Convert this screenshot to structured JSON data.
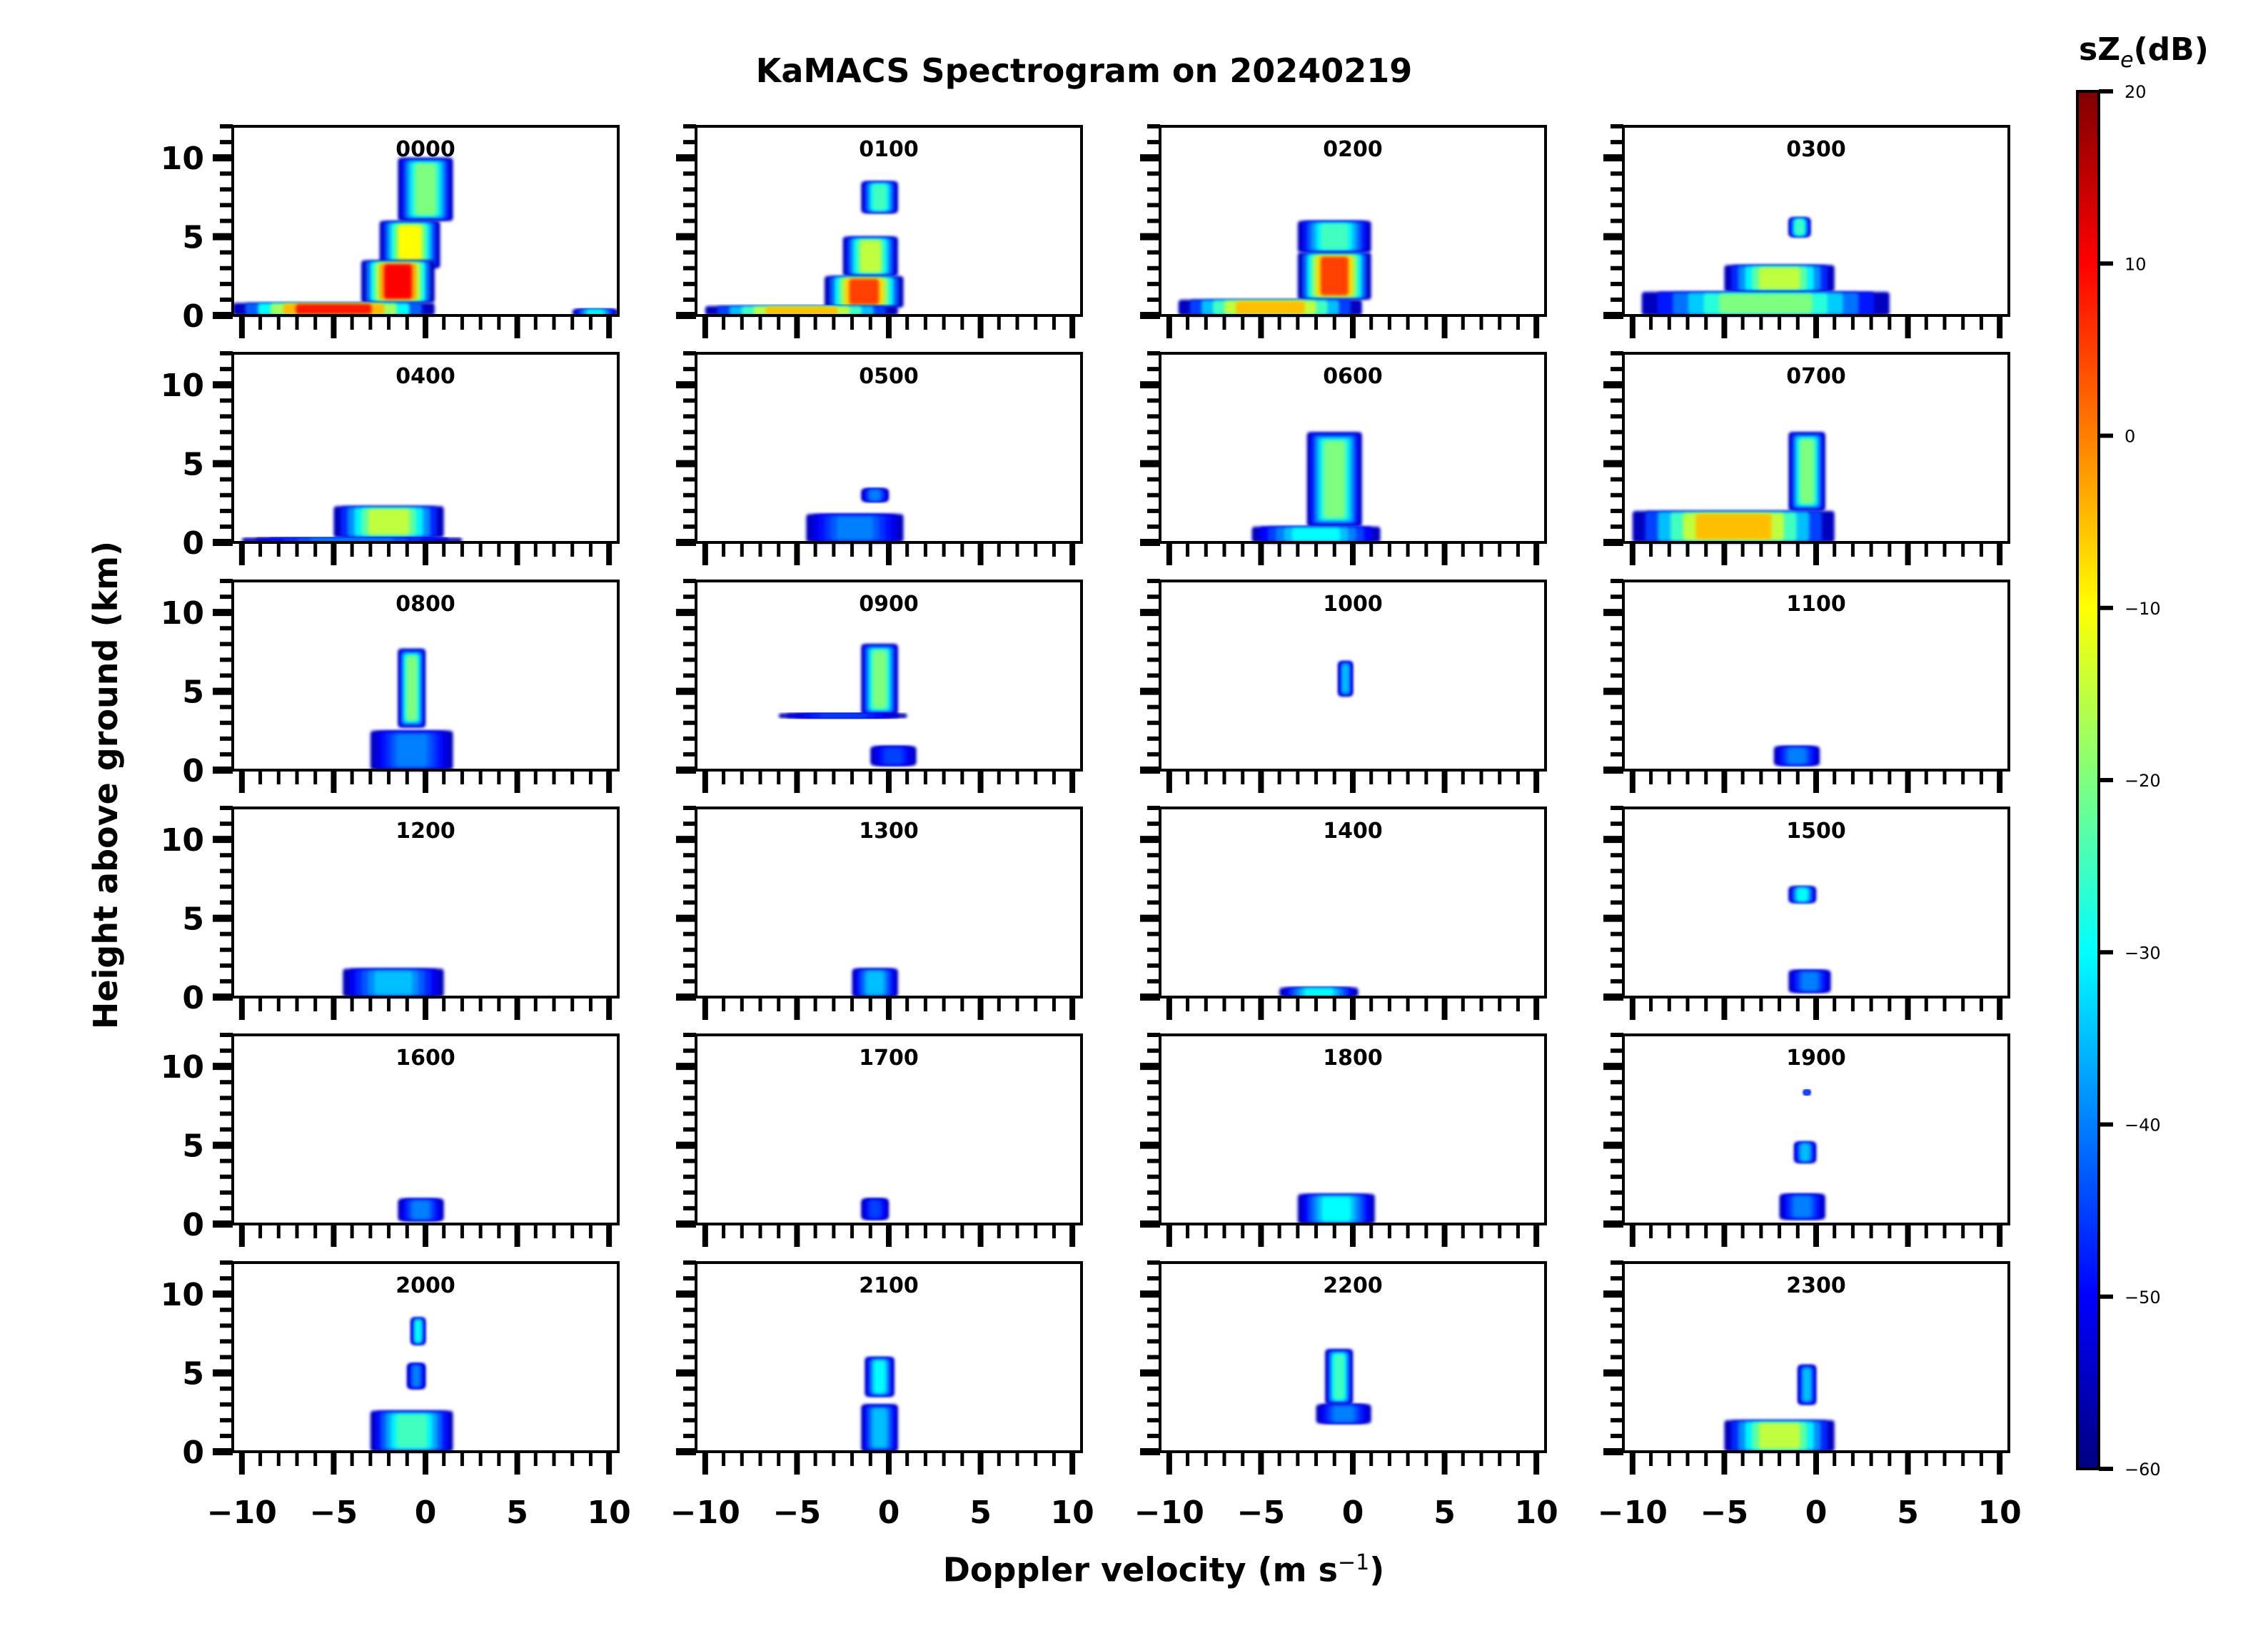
{
  "chart_data": {
    "type": "heatmap",
    "title": "KaMACS Spectrogram on 20240219",
    "xlabel": "Doppler velocity (m s",
    "xlabel_sup": "−1",
    "xlabel_close": ")",
    "ylabel": "Height above ground (km)",
    "xlim": [
      -10.5,
      10.5
    ],
    "ylim": [
      0,
      12
    ],
    "xticks": [
      -10,
      -5,
      0,
      5,
      10
    ],
    "xtick_labels": [
      "−10",
      "−5",
      "0",
      "5",
      "10"
    ],
    "yticks": [
      0,
      5,
      10
    ],
    "ytick_labels": [
      "0",
      "5",
      "10"
    ],
    "grid": false,
    "layout": {
      "rows": 6,
      "cols": 4
    },
    "colorbar": {
      "title": "sZ",
      "title_sub": "e",
      "title_unit": "(dB)",
      "range": [
        -60,
        20
      ],
      "ticks": [
        20,
        10,
        0,
        -10,
        -20,
        -30,
        -40,
        -50,
        -60
      ],
      "tick_labels": [
        "20",
        "10",
        "0",
        "−10",
        "−20",
        "−30",
        "−40",
        "−50",
        "−60"
      ],
      "colormap": "jet",
      "colors": [
        "#00007f",
        "#0000ff",
        "#007fff",
        "#00ffff",
        "#7fff7f",
        "#ffff00",
        "#ff7f00",
        "#ff0000",
        "#7f0000"
      ]
    },
    "panels": [
      {
        "label": "0000",
        "echoes": [
          {
            "v": [
              -1.5,
              1.5
            ],
            "h": [
              6,
              10
            ],
            "dB": -20
          },
          {
            "v": [
              -2.5,
              0.8
            ],
            "h": [
              3,
              6
            ],
            "dB": -10
          },
          {
            "v": [
              -3.5,
              0.5
            ],
            "h": [
              0.8,
              3.5
            ],
            "dB": 10
          },
          {
            "v": [
              -10.5,
              0.5
            ],
            "h": [
              0,
              0.8
            ],
            "dB": 8
          },
          {
            "v": [
              8,
              10.5
            ],
            "h": [
              0,
              0.4
            ],
            "dB": -30
          }
        ]
      },
      {
        "label": "0100",
        "echoes": [
          {
            "v": [
              -1.5,
              0.5
            ],
            "h": [
              6.5,
              8.5
            ],
            "dB": -25
          },
          {
            "v": [
              -2.5,
              0.5
            ],
            "h": [
              2.5,
              5
            ],
            "dB": -15
          },
          {
            "v": [
              -3.5,
              0.8
            ],
            "h": [
              0.5,
              2.5
            ],
            "dB": 5
          },
          {
            "v": [
              -10,
              0.5
            ],
            "h": [
              0,
              0.6
            ],
            "dB": -5
          }
        ]
      },
      {
        "label": "0200",
        "echoes": [
          {
            "v": [
              -3,
              1
            ],
            "h": [
              4,
              6
            ],
            "dB": -25
          },
          {
            "v": [
              -3,
              1
            ],
            "h": [
              1,
              4
            ],
            "dB": 5
          },
          {
            "v": [
              -9.5,
              0.5
            ],
            "h": [
              0,
              1
            ],
            "dB": -5
          }
        ]
      },
      {
        "label": "0300",
        "echoes": [
          {
            "v": [
              -1.5,
              -0.3
            ],
            "h": [
              5,
              6.2
            ],
            "dB": -25
          },
          {
            "v": [
              -5,
              1
            ],
            "h": [
              1.5,
              3.2
            ],
            "dB": -15
          },
          {
            "v": [
              -9.5,
              4
            ],
            "h": [
              0,
              1.5
            ],
            "dB": -20
          }
        ]
      },
      {
        "label": "0400",
        "echoes": [
          {
            "v": [
              -5,
              1
            ],
            "h": [
              0.3,
              2.3
            ],
            "dB": -15
          },
          {
            "v": [
              -10,
              2
            ],
            "h": [
              0,
              0.3
            ],
            "dB": -40
          }
        ]
      },
      {
        "label": "0500",
        "echoes": [
          {
            "v": [
              -1.5,
              0
            ],
            "h": [
              2.6,
              3.4
            ],
            "dB": -40
          },
          {
            "v": [
              -4.5,
              0.8
            ],
            "h": [
              0,
              1.8
            ],
            "dB": -40
          }
        ]
      },
      {
        "label": "0600",
        "echoes": [
          {
            "v": [
              -2.5,
              0.5
            ],
            "h": [
              1,
              7
            ],
            "dB": -20
          },
          {
            "v": [
              -5.5,
              1.5
            ],
            "h": [
              0,
              1
            ],
            "dB": -30
          }
        ]
      },
      {
        "label": "0700",
        "echoes": [
          {
            "v": [
              -1.5,
              0.5
            ],
            "h": [
              2,
              7
            ],
            "dB": -20
          },
          {
            "v": [
              -10,
              1
            ],
            "h": [
              0,
              2
            ],
            "dB": -5
          }
        ]
      },
      {
        "label": "0800",
        "echoes": [
          {
            "v": [
              -1.5,
              0
            ],
            "h": [
              2.7,
              7.7
            ],
            "dB": -20
          },
          {
            "v": [
              -3,
              1.5
            ],
            "h": [
              0,
              2.5
            ],
            "dB": -40
          }
        ]
      },
      {
        "label": "0900",
        "echoes": [
          {
            "v": [
              -1.5,
              0.5
            ],
            "h": [
              3.5,
              8
            ],
            "dB": -20
          },
          {
            "v": [
              -6,
              1
            ],
            "h": [
              3.3,
              3.6
            ],
            "dB": -45
          },
          {
            "v": [
              -1,
              1.5
            ],
            "h": [
              0.3,
              1.5
            ],
            "dB": -45
          }
        ]
      },
      {
        "label": "1000",
        "echoes": [
          {
            "v": [
              -0.8,
              0
            ],
            "h": [
              4.7,
              6.9
            ],
            "dB": -35
          }
        ]
      },
      {
        "label": "1100",
        "echoes": [
          {
            "v": [
              -2.3,
              0.2
            ],
            "h": [
              0.3,
              1.5
            ],
            "dB": -40
          }
        ]
      },
      {
        "label": "1200",
        "echoes": [
          {
            "v": [
              -4.5,
              1
            ],
            "h": [
              0,
              1.8
            ],
            "dB": -35
          }
        ]
      },
      {
        "label": "1300",
        "echoes": [
          {
            "v": [
              -2,
              0.5
            ],
            "h": [
              0,
              1.8
            ],
            "dB": -35
          }
        ]
      },
      {
        "label": "1400",
        "echoes": [
          {
            "v": [
              -4,
              0.3
            ],
            "h": [
              0,
              0.6
            ],
            "dB": -30
          }
        ]
      },
      {
        "label": "1500",
        "echoes": [
          {
            "v": [
              -1.5,
              0
            ],
            "h": [
              6,
              7
            ],
            "dB": -30
          },
          {
            "v": [
              -1.5,
              0.8
            ],
            "h": [
              0.3,
              1.7
            ],
            "dB": -40
          }
        ]
      },
      {
        "label": "1600",
        "echoes": [
          {
            "v": [
              -1.5,
              1
            ],
            "h": [
              0.2,
              1.6
            ],
            "dB": -40
          }
        ]
      },
      {
        "label": "1700",
        "echoes": [
          {
            "v": [
              -1.5,
              0
            ],
            "h": [
              0.3,
              1.6
            ],
            "dB": -45
          }
        ]
      },
      {
        "label": "1800",
        "echoes": [
          {
            "v": [
              -3,
              1.2
            ],
            "h": [
              0,
              1.9
            ],
            "dB": -30
          }
        ]
      },
      {
        "label": "1900",
        "echoes": [
          {
            "v": [
              -0.7,
              -0.3
            ],
            "h": [
              8.2,
              8.5
            ],
            "dB": -40
          },
          {
            "v": [
              -1.2,
              0
            ],
            "h": [
              3.9,
              5.2
            ],
            "dB": -35
          },
          {
            "v": [
              -2,
              0.5
            ],
            "h": [
              0.3,
              1.9
            ],
            "dB": -40
          }
        ]
      },
      {
        "label": "2000",
        "echoes": [
          {
            "v": [
              -0.8,
              0
            ],
            "h": [
              6.8,
              8.5
            ],
            "dB": -30
          },
          {
            "v": [
              -1,
              0
            ],
            "h": [
              4,
              5.6
            ],
            "dB": -40
          },
          {
            "v": [
              -3,
              1.5
            ],
            "h": [
              0,
              2.6
            ],
            "dB": -25
          }
        ]
      },
      {
        "label": "2100",
        "echoes": [
          {
            "v": [
              -1.3,
              0.3
            ],
            "h": [
              3.5,
              6
            ],
            "dB": -30
          },
          {
            "v": [
              -1.5,
              0.5
            ],
            "h": [
              0,
              3
            ],
            "dB": -35
          }
        ]
      },
      {
        "label": "2200",
        "echoes": [
          {
            "v": [
              -1.5,
              0
            ],
            "h": [
              3,
              6.5
            ],
            "dB": -25
          },
          {
            "v": [
              -2,
              1
            ],
            "h": [
              1.8,
              3
            ],
            "dB": -40
          }
        ]
      },
      {
        "label": "2300",
        "echoes": [
          {
            "v": [
              -1,
              0
            ],
            "h": [
              3,
              5.5
            ],
            "dB": -35
          },
          {
            "v": [
              -5,
              1
            ],
            "h": [
              0,
              2
            ],
            "dB": -15
          }
        ]
      }
    ]
  }
}
